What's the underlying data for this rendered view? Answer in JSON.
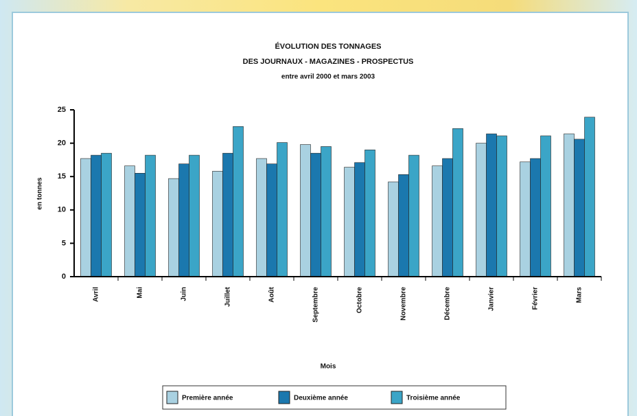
{
  "chart_data": {
    "type": "bar",
    "title_lines": [
      "ÉVOLUTION DES TONNAGES",
      "DES JOURNAUX - MAGAZINES - PROSPECTUS",
      "entre avril 2000 et mars 2003"
    ],
    "y_label": "en tonnes",
    "x_label": "Mois",
    "categories": [
      "Avril",
      "Mai",
      "Juin",
      "Juillet",
      "Août",
      "Septembre",
      "Octobre",
      "Novembre",
      "Décembre",
      "Janvier",
      "Février",
      "Mars"
    ],
    "series": [
      {
        "name": "Première année",
        "color": "#a9d1e1",
        "values": [
          17.7,
          16.6,
          14.7,
          15.8,
          17.7,
          19.8,
          16.4,
          14.2,
          16.6,
          20.0,
          17.2,
          21.4
        ]
      },
      {
        "name": "Deuxième année",
        "color": "#1b78ae",
        "values": [
          18.2,
          15.5,
          16.9,
          18.5,
          16.9,
          18.5,
          17.1,
          15.3,
          17.7,
          21.4,
          17.7,
          20.6
        ]
      },
      {
        "name": "Troisième année",
        "color": "#3ba5c7",
        "values": [
          18.5,
          18.2,
          18.2,
          22.5,
          20.1,
          19.5,
          19.0,
          18.2,
          22.2,
          21.1,
          21.1,
          23.9
        ]
      }
    ],
    "ylim": [
      0,
      25
    ],
    "yticks": [
      0,
      5,
      10,
      15,
      20,
      25
    ],
    "grid": false
  }
}
